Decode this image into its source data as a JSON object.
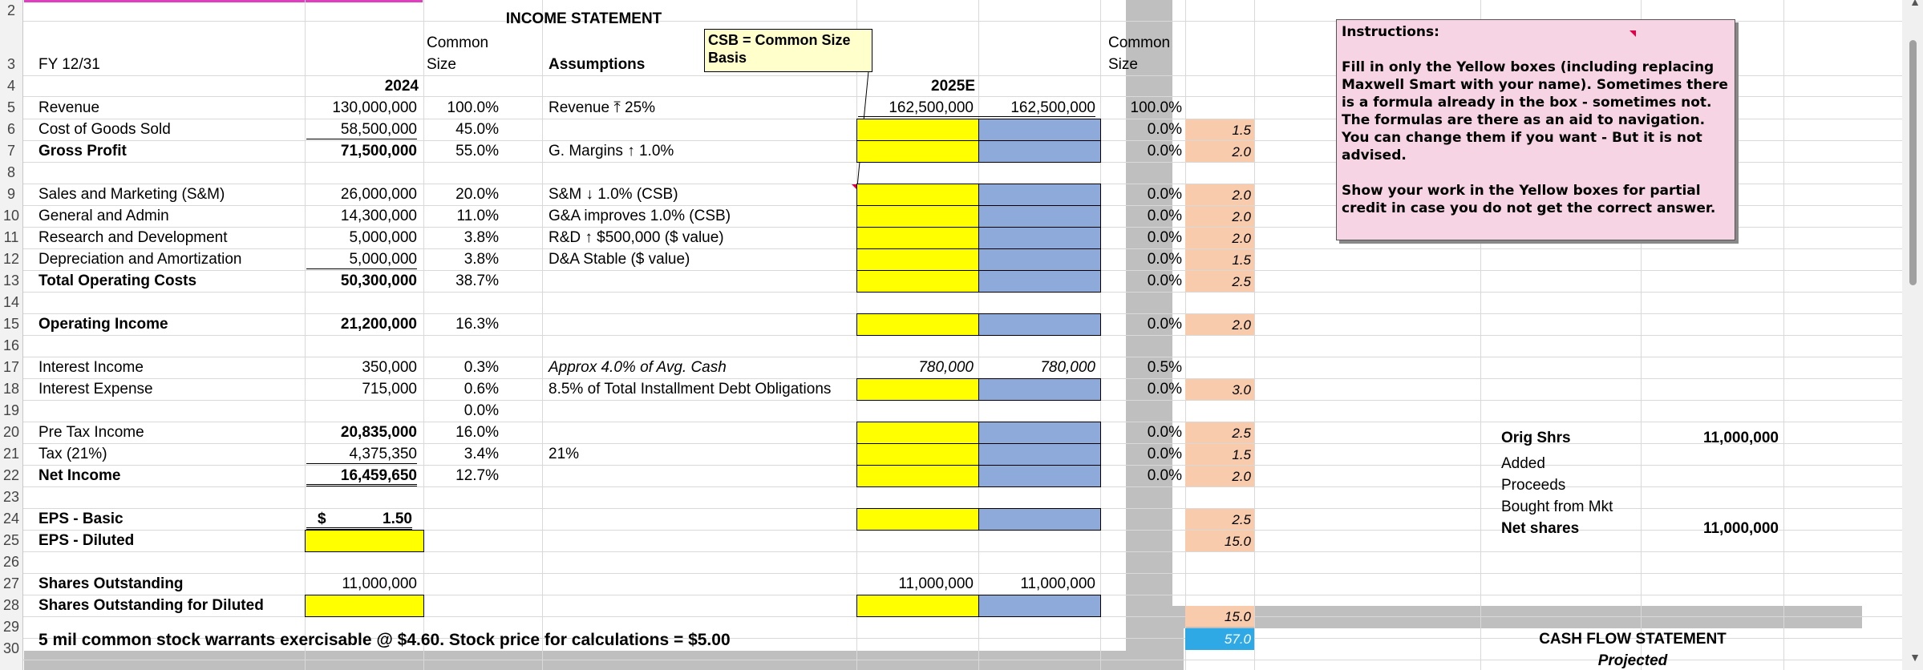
{
  "sheet": {
    "title": "INCOME STATEMENT",
    "header": {
      "fy": "FY 12/31",
      "common_size_1": "Common Size",
      "assumptions": "Assumptions",
      "common_size_2": "Common Size",
      "col_2024": "2024",
      "col_2025e": "2025E"
    },
    "csb_note": "CSB = Common Size Basis",
    "row_numbers": [
      "2",
      "3",
      "4",
      "5",
      "6",
      "7",
      "8",
      "9",
      "10",
      "11",
      "12",
      "13",
      "14",
      "15",
      "16",
      "17",
      "18",
      "19",
      "20",
      "21",
      "22",
      "23",
      "24",
      "25",
      "26",
      "27",
      "28",
      "29",
      "30"
    ],
    "rows": {
      "revenue": {
        "label": "Revenue",
        "v2024": "130,000,000",
        "cs": "100.0%",
        "assump": "Revenue ⤒ 25%",
        "e2025": "162,500,000",
        "blue": "162,500,000",
        "cs2": "100.0%"
      },
      "cogs": {
        "label": "Cost of Goods Sold",
        "v2024": "58,500,000",
        "cs": "45.0%",
        "cs2": "0.0%",
        "pts": "1.5"
      },
      "gross": {
        "label": "Gross Profit",
        "v2024": "71,500,000",
        "cs": "55.0%",
        "assump": "G. Margins ↑ 1.0%",
        "cs2": "0.0%",
        "pts": "2.0"
      },
      "sm": {
        "label": "Sales and Marketing (S&M)",
        "v2024": "26,000,000",
        "cs": "20.0%",
        "assump": "S&M ↓ 1.0% (CSB)",
        "cs2": "0.0%",
        "pts": "2.0"
      },
      "ga": {
        "label": "General and Admin",
        "v2024": "14,300,000",
        "cs": "11.0%",
        "assump": "G&A improves 1.0% (CSB)",
        "cs2": "0.0%",
        "pts": "2.0"
      },
      "rd": {
        "label": "Research and Development",
        "v2024": "5,000,000",
        "cs": "3.8%",
        "assump": "R&D ↑ $500,000 ($ value)",
        "cs2": "0.0%",
        "pts": "2.0"
      },
      "da": {
        "label": "Depreciation and Amortization",
        "v2024": "5,000,000",
        "cs": "3.8%",
        "assump": "D&A Stable ($ value)",
        "cs2": "0.0%",
        "pts": "1.5"
      },
      "toc": {
        "label": "Total Operating Costs",
        "v2024": "50,300,000",
        "cs": "38.7%",
        "cs2": "0.0%",
        "pts": "2.5"
      },
      "opinc": {
        "label": "Operating Income",
        "v2024": "21,200,000",
        "cs": "16.3%",
        "cs2": "0.0%",
        "pts": "2.0"
      },
      "intinc": {
        "label": "Interest Income",
        "v2024": "350,000",
        "cs": "0.3%",
        "assump": "Approx 4.0% of Avg. Cash",
        "e2025": "780,000",
        "blue": "780,000",
        "cs2": "0.5%"
      },
      "intexp": {
        "label": "Interest Expense",
        "v2024": "715,000",
        "cs": "0.6%",
        "assump": "8.5% of Total Installment Debt Obligations",
        "cs2": "0.0%",
        "pts": "3.0"
      },
      "r19": {
        "cs": "0.0%"
      },
      "pretax": {
        "label": "Pre Tax Income",
        "v2024": "20,835,000",
        "cs": "16.0%",
        "cs2": "0.0%",
        "pts": "2.5"
      },
      "tax": {
        "label": "Tax (21%)",
        "v2024": "4,375,350",
        "cs": "3.4%",
        "assump": "21%",
        "cs2": "0.0%",
        "pts": "1.5"
      },
      "netinc": {
        "label": "Net Income",
        "v2024": "16,459,650",
        "cs": "12.7%",
        "cs2": "0.0%",
        "pts": "2.0"
      },
      "epsb": {
        "label": "EPS - Basic",
        "dollar": "$",
        "v2024": "1.50",
        "pts": "2.5"
      },
      "epsd": {
        "label": "EPS - Diluted",
        "pts": "15.0"
      },
      "shares": {
        "label": "Shares Outstanding",
        "v2024": "11,000,000",
        "e2025": "11,000,000",
        "blue": "11,000,000"
      },
      "sharesd": {
        "label": "Shares Outstanding for Diluted",
        "pts": "15.0"
      },
      "warrants": {
        "label": "5 mil common stock warrants exercisable @ $4.60. Stock price for calculations = $5.00",
        "total": "57.0"
      }
    },
    "side": {
      "orig_shrs": "Orig Shrs",
      "orig_val": "11,000,000",
      "added": "Added",
      "proceeds": "Proceeds",
      "bought": "Bought from Mkt",
      "net_shares": "Net shares",
      "net_val": "11,000,000",
      "cfs_title": "CASH FLOW STATEMENT",
      "projected": "Projected"
    },
    "instructions": {
      "title": "Instructions:",
      "p1": "Fill in only the Yellow boxes (including replacing Maxwell Smart with your name).  Sometimes there is a formula already in the box - sometimes not.  The formulas are there as an aid to navigation.  You can change them if you want - But it is not advised.",
      "p2": "Show your work in the Yellow boxes for partial credit in case you do not get the correct answer."
    },
    "colors": {
      "yellow": "#ffff00",
      "blue": "#8eaadb",
      "peach": "#f8cbad",
      "aqua": "#2ea9e5",
      "grey": "#bfbfbf",
      "pink_header": "#e040c0",
      "note": "#f7d4e3"
    }
  }
}
